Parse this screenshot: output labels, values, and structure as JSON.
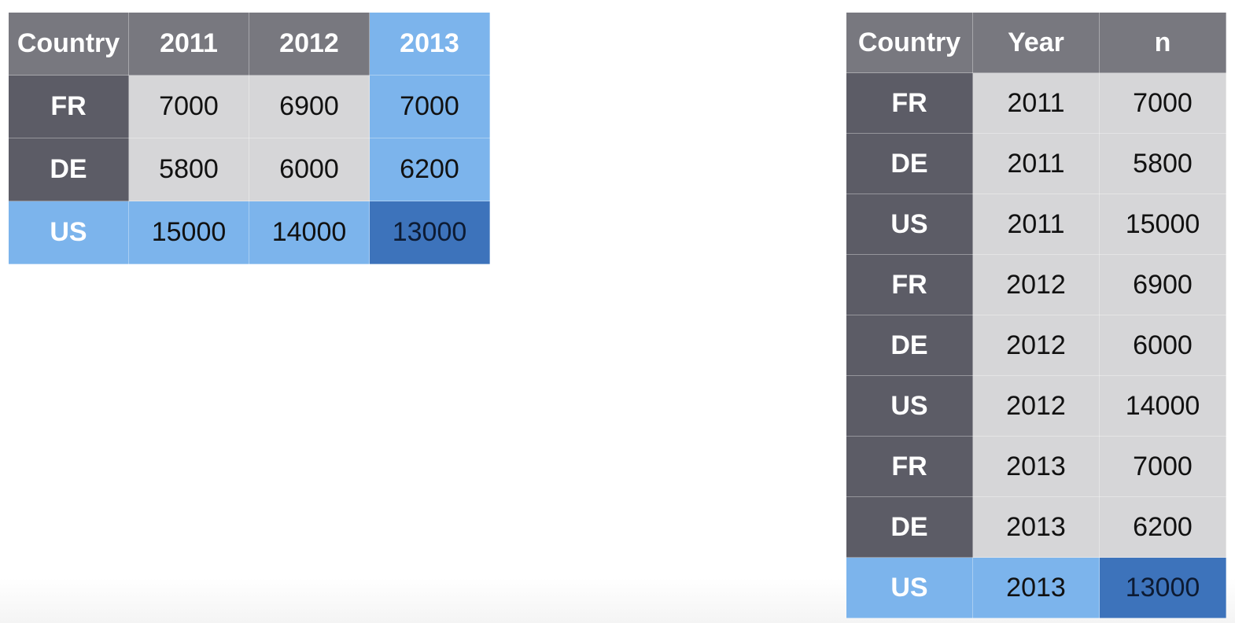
{
  "wide_table": {
    "headers": [
      "Country",
      "2011",
      "2012",
      "2013"
    ],
    "rows": [
      {
        "country": "FR",
        "values": [
          "7000",
          "6900",
          "7000"
        ]
      },
      {
        "country": "DE",
        "values": [
          "5800",
          "6000",
          "6200"
        ]
      },
      {
        "country": "US",
        "values": [
          "15000",
          "14000",
          "13000"
        ]
      }
    ]
  },
  "long_table": {
    "headers": [
      "Country",
      "Year",
      "n"
    ],
    "rows": [
      [
        "FR",
        "2011",
        "7000"
      ],
      [
        "DE",
        "2011",
        "5800"
      ],
      [
        "US",
        "2011",
        "15000"
      ],
      [
        "FR",
        "2012",
        "6900"
      ],
      [
        "DE",
        "2012",
        "6000"
      ],
      [
        "US",
        "2012",
        "14000"
      ],
      [
        "FR",
        "2013",
        "7000"
      ],
      [
        "DE",
        "2013",
        "6200"
      ],
      [
        "US",
        "2013",
        "13000"
      ]
    ]
  },
  "colors": {
    "header_bg": "#78787f",
    "row_header_bg": "#5c5c66",
    "cell_bg": "#d6d6d8",
    "highlight_light": "#7cb4ec",
    "highlight_dark": "#3d73bb"
  }
}
